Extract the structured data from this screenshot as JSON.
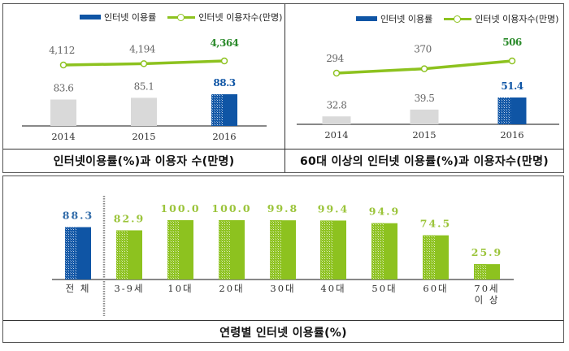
{
  "colors": {
    "blue": "#0f55a5",
    "green": "#8dc21f",
    "gray_bar": "#d9d9d9",
    "gray_text": "#666666",
    "dark_green_text": "#2a8a2a"
  },
  "chart_data": [
    {
      "type": "bar",
      "title": "인터넷이용률(%)과 이용자 수(만명)",
      "categories": [
        "2014",
        "2015",
        "2016"
      ],
      "series": [
        {
          "name": "인터넷 이용률",
          "type": "bar",
          "values": [
            83.6,
            85.1,
            88.3
          ],
          "labels": [
            "83.6",
            "85.1",
            "88.3"
          ]
        },
        {
          "name": "인터넷 이용자수(만명)",
          "type": "line",
          "values": [
            4112,
            4194,
            4364
          ],
          "labels": [
            "4,112",
            "4,194",
            "4,364"
          ]
        }
      ],
      "legend": [
        "인터넷 이용률",
        "인터넷 이용자수(만명)"
      ],
      "legend_position": "top-right",
      "grid": false
    },
    {
      "type": "bar",
      "title": "60대 이상의 인터넷 이용률(%)과 이용자수(만명)",
      "categories": [
        "2014",
        "2015",
        "2016"
      ],
      "series": [
        {
          "name": "인터넷 이용률",
          "type": "bar",
          "values": [
            32.8,
            39.5,
            51.4
          ],
          "labels": [
            "32.8",
            "39.5",
            "51.4"
          ]
        },
        {
          "name": "인터넷 이용자수(만명)",
          "type": "line",
          "values": [
            294,
            370,
            506
          ],
          "labels": [
            "294",
            "370",
            "506"
          ]
        }
      ],
      "legend": [
        "인터넷 이용률",
        "인터넷 이용자수(만명)"
      ],
      "legend_position": "top-right",
      "grid": false
    },
    {
      "type": "bar",
      "title": "연령별 인터넷 이용률(%)",
      "categories": [
        "전 체",
        "3-9세",
        "10대",
        "20대",
        "30대",
        "40대",
        "50대",
        "60대",
        "70세 이상"
      ],
      "category_lines": [
        [
          "전 체"
        ],
        [
          "3-9세"
        ],
        [
          "10대"
        ],
        [
          "20대"
        ],
        [
          "30대"
        ],
        [
          "40대"
        ],
        [
          "50대"
        ],
        [
          "60대"
        ],
        [
          "70세",
          "이 상"
        ]
      ],
      "values": [
        88.3,
        82.9,
        100.0,
        100.0,
        99.8,
        99.4,
        94.9,
        74.5,
        25.9
      ],
      "labels": [
        "88.3",
        "82.9",
        "100.0",
        "100.0",
        "99.8",
        "99.4",
        "94.9",
        "74.5",
        "25.9"
      ],
      "highlight_index": 0,
      "ylim": [
        0,
        100
      ],
      "grid": false
    }
  ]
}
